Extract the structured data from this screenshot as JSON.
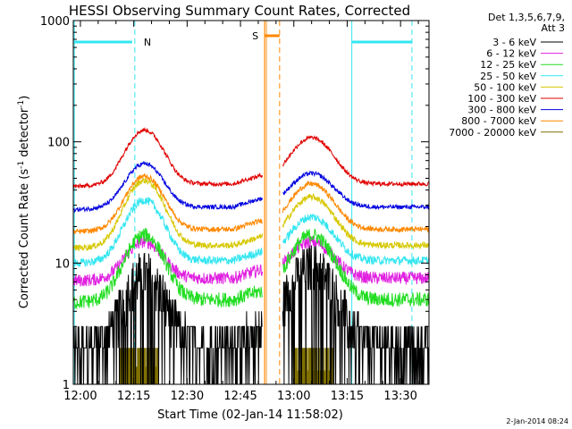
{
  "chart_data": {
    "type": "line",
    "title": "HESSI Observing Summary Count Rates, Corrected",
    "xlabel": "Start Time (02-Jan-14 11:58:02)",
    "ylabel_main": "Corrected Count Rate (s",
    "ylabel_sup1": "-1",
    "ylabel_mid": " detector",
    "ylabel_sup2": "-1",
    "ylabel_end": ")",
    "y_scale": "log",
    "ylim": [
      1,
      1000
    ],
    "xlim_minutes": [
      0,
      100
    ],
    "x_ticks": [
      {
        "m": 2,
        "label": "12:00"
      },
      {
        "m": 17,
        "label": "12:15"
      },
      {
        "m": 32,
        "label": "12:30"
      },
      {
        "m": 47,
        "label": "12:45"
      },
      {
        "m": 62,
        "label": "13:00"
      },
      {
        "m": 77,
        "label": "13:15"
      },
      {
        "m": 92,
        "label": "13:30"
      }
    ],
    "y_ticks": [
      {
        "v": 1,
        "label": "1"
      },
      {
        "v": 10,
        "label": "10"
      },
      {
        "v": 100,
        "label": "100"
      },
      {
        "v": 1000,
        "label": "1000"
      }
    ],
    "legend_header_1": "Det 1,3,5,6,7,9,",
    "legend_header_2": "Att 3",
    "series": [
      {
        "name": "3 - 6 keV",
        "color": "#000000",
        "base": 2.3,
        "peak": 8.5,
        "peak2": 10,
        "noise": 0.35
      },
      {
        "name": "6 - 12 keV",
        "color": "#e020e0",
        "base": 7.5,
        "peak": 15,
        "peak2": 15,
        "noise": 0.12
      },
      {
        "name": "12 - 25 keV",
        "color": "#22dd22",
        "base": 5,
        "peak": 17,
        "peak2": 17,
        "noise": 0.14
      },
      {
        "name": "25 - 50 keV",
        "color": "#33e6f0",
        "base": 10.5,
        "peak": 33,
        "peak2": 24,
        "noise": 0.08
      },
      {
        "name": "50 - 100 keV",
        "color": "#d6c800",
        "base": 14,
        "peak": 48,
        "peak2": 35,
        "noise": 0.06
      },
      {
        "name": "100 - 300 keV",
        "color": "#e00000",
        "base": 45,
        "peak": 125,
        "peak2": 108,
        "noise": 0.04
      },
      {
        "name": "300 - 800 keV",
        "color": "#0000e0",
        "base": 29,
        "peak": 66,
        "peak2": 55,
        "noise": 0.04
      },
      {
        "name": "800 - 7000 keV",
        "color": "#ff8800",
        "base": 19,
        "peak": 52,
        "peak2": 45,
        "noise": 0.05
      },
      {
        "name": "7000 - 20000 keV",
        "color": "#807000",
        "base": 1,
        "peak": 2,
        "peak2": 2,
        "noise": 0.0
      }
    ],
    "markers": [
      {
        "label": "N",
        "color": "#33e6f0",
        "kind": "night"
      },
      {
        "label": "S",
        "color": "#ff8800",
        "kind": "saa"
      }
    ],
    "date_stamp": "2-Jan-2014 08:24"
  }
}
